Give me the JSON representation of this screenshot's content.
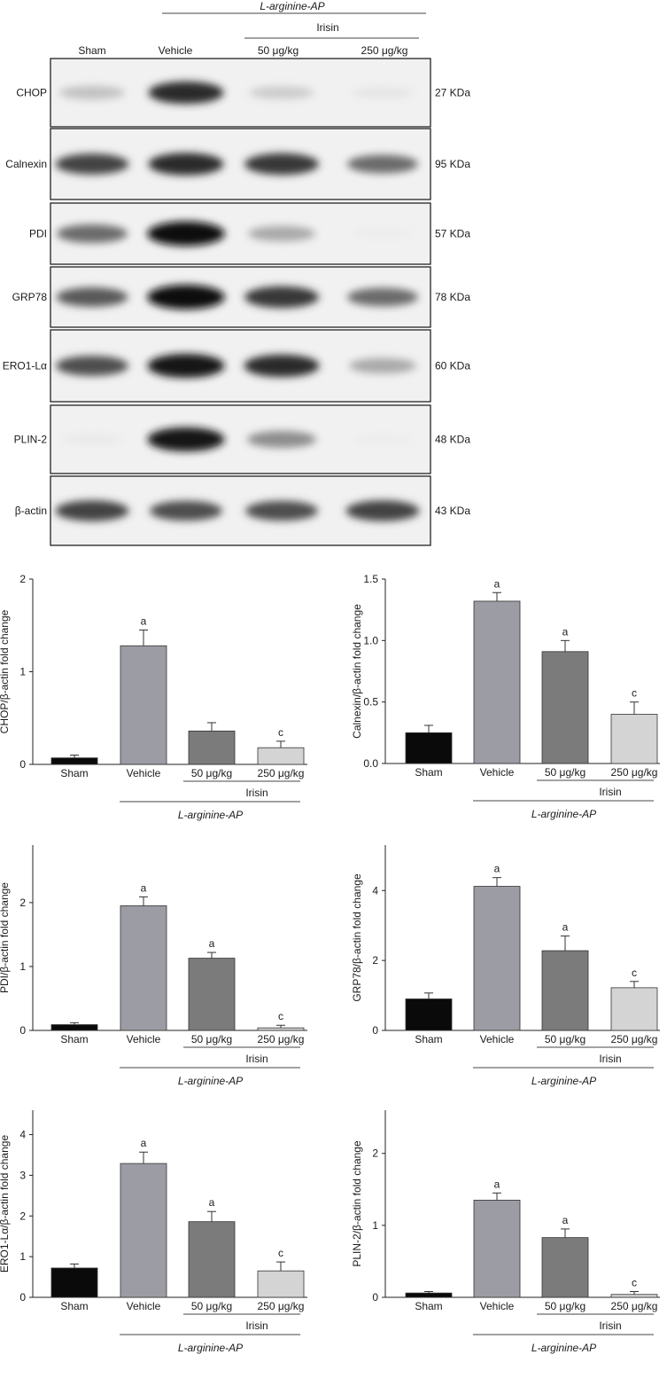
{
  "blot": {
    "group_label": "L-arginine-AP",
    "subgroup_label": "Irisin",
    "lanes": [
      "Sham",
      "Vehicle",
      "50 μg/kg",
      "250 μg/kg"
    ],
    "rows": [
      {
        "protein": "CHOP",
        "size": "27 KDa",
        "intensity": [
          0.3,
          0.85,
          0.25,
          0.1
        ]
      },
      {
        "protein": "Calnexin",
        "size": "95 KDa",
        "intensity": [
          0.75,
          0.85,
          0.8,
          0.6
        ]
      },
      {
        "protein": "PDI",
        "size": "57 KDa",
        "intensity": [
          0.6,
          0.98,
          0.4,
          0.03
        ]
      },
      {
        "protein": "GRP78",
        "size": "78 KDa",
        "intensity": [
          0.65,
          0.98,
          0.8,
          0.6
        ]
      },
      {
        "protein": "ERO1-Lα",
        "size": "60 KDa",
        "intensity": [
          0.7,
          0.95,
          0.85,
          0.4
        ]
      },
      {
        "protein": "PLIN-2",
        "size": "48 KDa",
        "intensity": [
          0.06,
          0.95,
          0.5,
          0.03
        ]
      },
      {
        "protein": "β-actin",
        "size": "43 KDa",
        "intensity": [
          0.75,
          0.7,
          0.7,
          0.75
        ]
      }
    ]
  },
  "chart_data": [
    {
      "type": "bar",
      "ylabel": "CHOP/β-actin fold change",
      "categories": [
        "Sham",
        "Vehicle",
        "50 μg/kg",
        "250 μg/kg"
      ],
      "values": [
        0.07,
        1.28,
        0.36,
        0.18
      ],
      "errors": [
        0.03,
        0.17,
        0.09,
        0.07
      ],
      "annotations": [
        "",
        "a",
        "",
        "c"
      ],
      "ylim": [
        0,
        2
      ],
      "yticks": [
        0,
        1,
        2
      ],
      "ytick_labels": [
        "0",
        "1",
        "2"
      ],
      "group_label": "L-arginine-AP",
      "subgroup_label": "Irisin",
      "colors": [
        "#0a0a0a",
        "#9c9ca4",
        "#7b7b7b",
        "#d4d4d4"
      ]
    },
    {
      "type": "bar",
      "ylabel": "Calnexin/β-actin fold change",
      "categories": [
        "Sham",
        "Vehicle",
        "50 μg/kg",
        "250 μg/kg"
      ],
      "values": [
        0.25,
        1.32,
        0.91,
        0.4
      ],
      "errors": [
        0.06,
        0.07,
        0.09,
        0.1
      ],
      "annotations": [
        "",
        "a",
        "a",
        "c"
      ],
      "ylim": [
        0,
        1.5
      ],
      "yticks": [
        0,
        0.5,
        1,
        1.5
      ],
      "ytick_labels": [
        "0.0",
        "0.5",
        "1.0",
        "1.5"
      ],
      "group_label": "L-arginine-AP",
      "subgroup_label": "Irisin",
      "colors": [
        "#0a0a0a",
        "#9c9ca4",
        "#7b7b7b",
        "#d4d4d4"
      ]
    },
    {
      "type": "bar",
      "ylabel": "PDI/β-actin fold change",
      "categories": [
        "Sham",
        "Vehicle",
        "50 μg/kg",
        "250 μg/kg"
      ],
      "values": [
        0.09,
        1.95,
        1.13,
        0.04
      ],
      "errors": [
        0.03,
        0.14,
        0.09,
        0.04
      ],
      "annotations": [
        "",
        "a",
        "a",
        "c"
      ],
      "ylim": [
        0,
        2.9
      ],
      "yticks": [
        0,
        1,
        2
      ],
      "ytick_labels": [
        "0",
        "1",
        "2"
      ],
      "group_label": "L-arginine-AP",
      "subgroup_label": "Irisin",
      "colors": [
        "#0a0a0a",
        "#9c9ca4",
        "#7b7b7b",
        "#d4d4d4"
      ]
    },
    {
      "type": "bar",
      "ylabel": "GRP78/β-actin fold change",
      "categories": [
        "Sham",
        "Vehicle",
        "50 μg/kg",
        "250 μg/kg"
      ],
      "values": [
        0.9,
        4.12,
        2.28,
        1.22
      ],
      "errors": [
        0.17,
        0.25,
        0.42,
        0.18
      ],
      "annotations": [
        "",
        "a",
        "a",
        "c"
      ],
      "ylim": [
        0,
        5.3
      ],
      "yticks": [
        0,
        2,
        4
      ],
      "ytick_labels": [
        "0",
        "2",
        "4"
      ],
      "group_label": "L-arginine-AP",
      "subgroup_label": "Irisin",
      "colors": [
        "#0a0a0a",
        "#9c9ca4",
        "#7b7b7b",
        "#d4d4d4"
      ]
    },
    {
      "type": "bar",
      "ylabel": "ERO1-Lα/β-actin fold change",
      "categories": [
        "Sham",
        "Vehicle",
        "50 μg/kg",
        "250 μg/kg"
      ],
      "values": [
        0.72,
        3.29,
        1.86,
        0.65
      ],
      "errors": [
        0.1,
        0.28,
        0.25,
        0.22
      ],
      "annotations": [
        "",
        "a",
        "a",
        "c"
      ],
      "ylim": [
        0,
        4.6
      ],
      "yticks": [
        0,
        1,
        2,
        3,
        4
      ],
      "ytick_labels": [
        "0",
        "1",
        "2",
        "3",
        "4"
      ],
      "group_label": "L-arginine-AP",
      "subgroup_label": "Irisin",
      "colors": [
        "#0a0a0a",
        "#9c9ca4",
        "#7b7b7b",
        "#d4d4d4"
      ]
    },
    {
      "type": "bar",
      "ylabel": "PLIN-2/β-actin fold change",
      "categories": [
        "Sham",
        "Vehicle",
        "50 μg/kg",
        "250 μg/kg"
      ],
      "values": [
        0.06,
        1.35,
        0.83,
        0.04
      ],
      "errors": [
        0.02,
        0.1,
        0.12,
        0.04
      ],
      "annotations": [
        "",
        "a",
        "a",
        "c"
      ],
      "ylim": [
        0,
        2.6
      ],
      "yticks": [
        0,
        1,
        2
      ],
      "ytick_labels": [
        "0",
        "1",
        "2"
      ],
      "group_label": "L-arginine-AP",
      "subgroup_label": "Irisin",
      "colors": [
        "#0a0a0a",
        "#9c9ca4",
        "#7b7b7b",
        "#d4d4d4"
      ]
    }
  ]
}
